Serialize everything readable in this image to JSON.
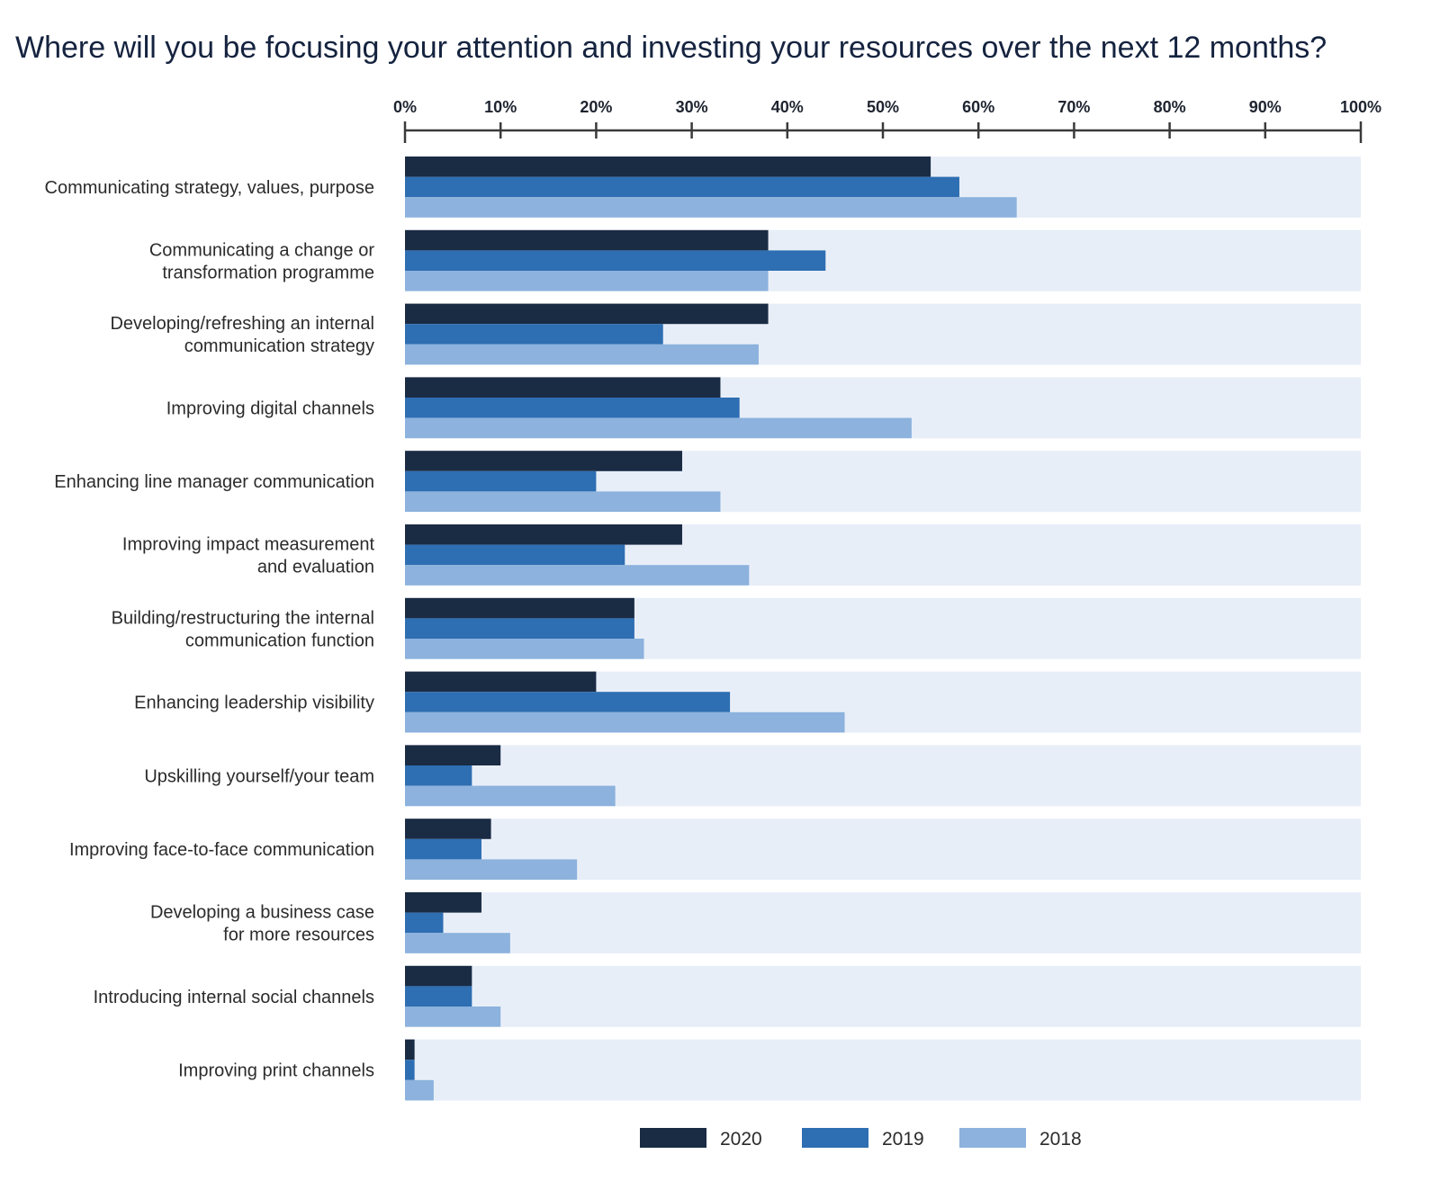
{
  "chart_data": {
    "type": "bar",
    "orientation": "horizontal",
    "title": "Where will you be focusing your attention and investing your resources over the next 12 months?",
    "xlim": [
      0,
      100
    ],
    "x_ticks": [
      "0%",
      "10%",
      "20%",
      "30%",
      "40%",
      "50%",
      "60%",
      "70%",
      "80%",
      "90%",
      "100%"
    ],
    "x_axis_position": "top",
    "grid": false,
    "legend_position": "bottom-center",
    "categories": [
      [
        "Communicating strategy, values, purpose"
      ],
      [
        "Communicating a change or",
        "transformation programme"
      ],
      [
        "Developing/refreshing an internal",
        "communication strategy"
      ],
      [
        "Improving digital channels"
      ],
      [
        "Enhancing line manager communication"
      ],
      [
        "Improving impact measurement",
        "and evaluation"
      ],
      [
        "Building/restructuring the internal",
        "communication function"
      ],
      [
        "Enhancing leadership visibility"
      ],
      [
        "Upskilling yourself/your team"
      ],
      [
        "Improving face-to-face communication"
      ],
      [
        "Developing a business case",
        "for more resources"
      ],
      [
        "Introducing internal social channels"
      ],
      [
        "Improving print channels"
      ]
    ],
    "series": [
      {
        "name": "2020",
        "color": "#1a2b44",
        "values": [
          55,
          38,
          38,
          33,
          29,
          29,
          24,
          20,
          10,
          9,
          8,
          7,
          1
        ]
      },
      {
        "name": "2019",
        "color": "#2e6eb2",
        "values": [
          58,
          44,
          27,
          35,
          20,
          23,
          24,
          34,
          7,
          8,
          4,
          7,
          1
        ]
      },
      {
        "name": "2018",
        "color": "#8cb2dd",
        "values": [
          64,
          38,
          37,
          53,
          33,
          36,
          25,
          46,
          22,
          18,
          11,
          10,
          3
        ]
      }
    ],
    "background_color": "#e8eef8",
    "axis_color": "#3a3a3a"
  }
}
